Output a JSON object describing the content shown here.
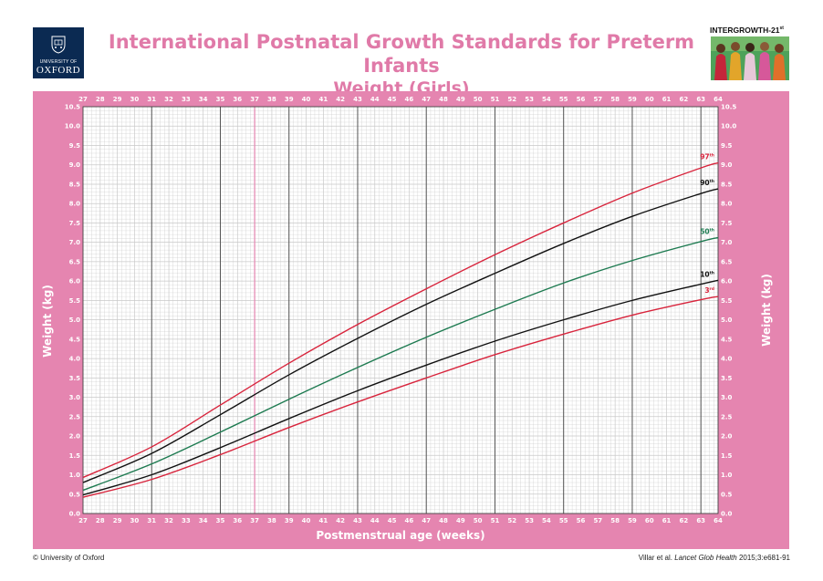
{
  "header": {
    "title_line1": "International Postnatal Growth Standards for Preterm Infants",
    "title_line2": "Weight (Girls)"
  },
  "logo": {
    "university_text": "UNIVERSITY OF",
    "oxford_text": "OXFORD",
    "icon": "oxford-crest-icon"
  },
  "badge": {
    "text": "INTERGROWTH-21",
    "superscript": "st"
  },
  "footer": {
    "copyright": "© University of Oxford",
    "citation_author": "Villar et al.",
    "citation_journal": "Lancet Glob Health",
    "citation_ref": "2015;3:e681-91"
  },
  "colors": {
    "title": "#e07aa8",
    "frame": "#e585b0",
    "grid_minor": "#c9c9c9",
    "grid_major": "#555555",
    "p3": "#d8243c",
    "p10": "#111111",
    "p50": "#1d7a50",
    "p90": "#111111",
    "p97": "#d8243c"
  },
  "chart_data": {
    "type": "line",
    "xlabel": "Postmenstrual age (weeks)",
    "ylabel": "Weight (kg)",
    "xlim": [
      27,
      64
    ],
    "ylim": [
      0.0,
      10.5
    ],
    "x_ticks": [
      27,
      28,
      29,
      30,
      31,
      32,
      33,
      34,
      35,
      36,
      37,
      38,
      39,
      40,
      41,
      42,
      43,
      44,
      45,
      46,
      47,
      48,
      49,
      50,
      51,
      52,
      53,
      54,
      55,
      56,
      57,
      58,
      59,
      60,
      61,
      62,
      63,
      64
    ],
    "y_ticks": [
      "0.0",
      "0.5",
      "1.0",
      "1.5",
      "2.0",
      "2.5",
      "3.0",
      "3.5",
      "4.0",
      "4.5",
      "5.0",
      "5.5",
      "6.0",
      "6.5",
      "7.0",
      "7.5",
      "8.0",
      "8.5",
      "9.0",
      "9.5",
      "10.0",
      "10.5"
    ],
    "x_major_lines": [
      31,
      35,
      39,
      43,
      47,
      51,
      55,
      59,
      63
    ],
    "x_highlight_line": 37,
    "grid": true,
    "x": [
      27,
      31,
      35,
      39,
      43,
      47,
      51,
      55,
      59,
      63,
      64
    ],
    "series": [
      {
        "label_num": "97",
        "label_sup": "th",
        "color": "#d8243c",
        "values": [
          0.93,
          1.72,
          2.8,
          3.88,
          4.88,
          5.8,
          6.68,
          7.5,
          8.27,
          8.92,
          9.05
        ]
      },
      {
        "label_num": "90",
        "label_sup": "th",
        "color": "#111111",
        "values": [
          0.8,
          1.55,
          2.55,
          3.58,
          4.52,
          5.4,
          6.2,
          6.97,
          7.67,
          8.26,
          8.38
        ]
      },
      {
        "label_num": "50",
        "label_sup": "th",
        "color": "#1d7a50",
        "values": [
          0.6,
          1.28,
          2.1,
          2.95,
          3.77,
          4.55,
          5.27,
          5.95,
          6.53,
          7.02,
          7.12
        ]
      },
      {
        "label_num": "10",
        "label_sup": "th",
        "color": "#111111",
        "values": [
          0.48,
          1.0,
          1.7,
          2.45,
          3.17,
          3.83,
          4.45,
          5.0,
          5.5,
          5.92,
          6.02
        ]
      },
      {
        "label_num": "3",
        "label_sup": "rd",
        "color": "#d8243c",
        "values": [
          0.42,
          0.88,
          1.52,
          2.22,
          2.88,
          3.5,
          4.1,
          4.63,
          5.12,
          5.52,
          5.6
        ]
      }
    ]
  }
}
